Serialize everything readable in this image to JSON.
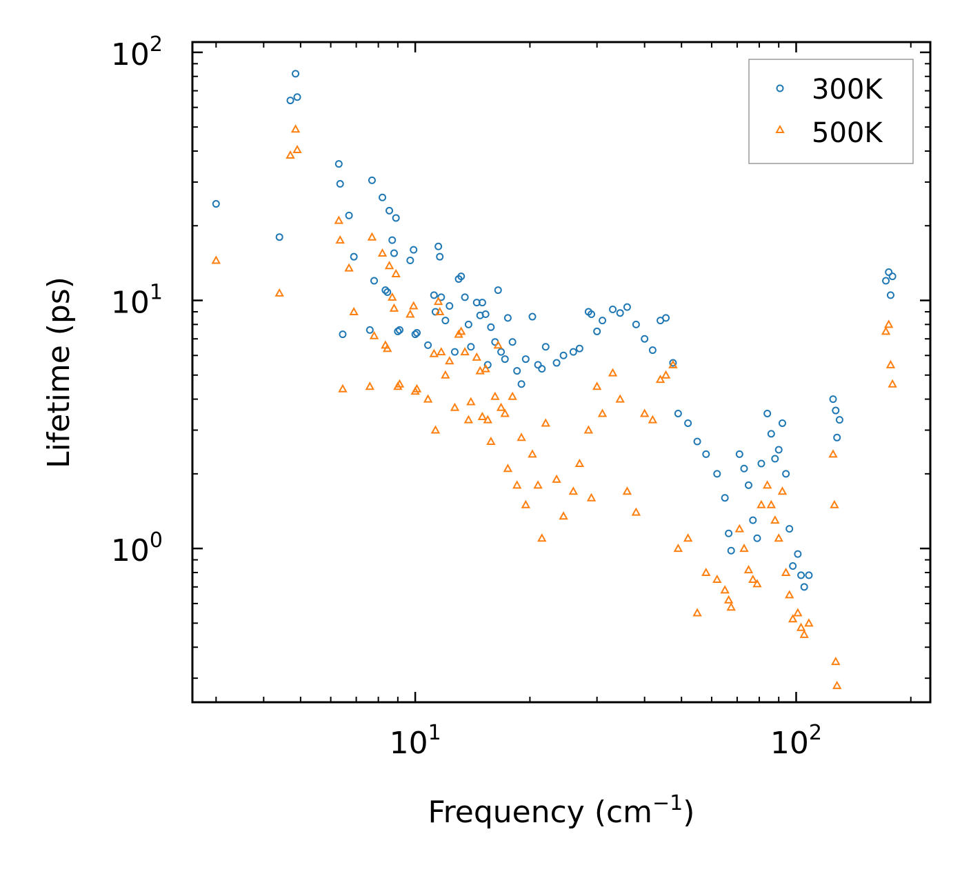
{
  "chart_data": {
    "type": "scatter",
    "title": "",
    "xlabel": "Frequency (cm",
    "xlabel_sup": "−1",
    "xlabel_close": ")",
    "ylabel": "Lifetime (ps)",
    "xscale": "log",
    "yscale": "log",
    "xlim": [
      2.6,
      225
    ],
    "ylim": [
      0.24,
      110
    ],
    "legend_position": "top-right",
    "x_ticks": [
      {
        "value": 10,
        "base": "10",
        "exp": "1"
      },
      {
        "value": 100,
        "base": "10",
        "exp": "2"
      }
    ],
    "y_ticks": [
      {
        "value": 1,
        "base": "10",
        "exp": "0"
      },
      {
        "value": 10,
        "base": "10",
        "exp": "1"
      },
      {
        "value": 100,
        "base": "10",
        "exp": "2"
      }
    ],
    "series": [
      {
        "name": "300K",
        "marker": "circle",
        "color": "#1f77b4",
        "points": [
          [
            3.0,
            24.5
          ],
          [
            4.4,
            18.0
          ],
          [
            4.7,
            64
          ],
          [
            4.9,
            66
          ],
          [
            4.85,
            82
          ],
          [
            6.3,
            35.5
          ],
          [
            6.35,
            29.5
          ],
          [
            6.45,
            7.3
          ],
          [
            6.7,
            22.0
          ],
          [
            6.9,
            15.0
          ],
          [
            7.6,
            7.6
          ],
          [
            7.7,
            30.5
          ],
          [
            7.8,
            12.0
          ],
          [
            8.2,
            26.0
          ],
          [
            8.35,
            11.0
          ],
          [
            8.45,
            10.8
          ],
          [
            8.55,
            23.0
          ],
          [
            8.7,
            17.5
          ],
          [
            8.8,
            15.5
          ],
          [
            8.9,
            21.5
          ],
          [
            9.0,
            7.5
          ],
          [
            9.1,
            7.6
          ],
          [
            9.7,
            14.5
          ],
          [
            9.9,
            16.0
          ],
          [
            10.0,
            7.3
          ],
          [
            10.1,
            7.4
          ],
          [
            10.8,
            6.6
          ],
          [
            11.2,
            10.5
          ],
          [
            11.3,
            9.0
          ],
          [
            11.5,
            16.5
          ],
          [
            11.6,
            15.0
          ],
          [
            11.7,
            10.3
          ],
          [
            12.0,
            8.3
          ],
          [
            12.3,
            9.5
          ],
          [
            12.7,
            6.2
          ],
          [
            13.0,
            12.2
          ],
          [
            13.2,
            12.5
          ],
          [
            13.5,
            10.3
          ],
          [
            13.8,
            8.0
          ],
          [
            14.0,
            6.5
          ],
          [
            14.5,
            9.8
          ],
          [
            14.8,
            8.7
          ],
          [
            15.0,
            9.8
          ],
          [
            15.3,
            8.8
          ],
          [
            15.5,
            5.5
          ],
          [
            15.8,
            7.8
          ],
          [
            16.2,
            6.8
          ],
          [
            16.5,
            11.0
          ],
          [
            16.8,
            6.2
          ],
          [
            17.2,
            5.8
          ],
          [
            17.5,
            8.5
          ],
          [
            18.0,
            6.8
          ],
          [
            18.5,
            5.2
          ],
          [
            19.0,
            4.6
          ],
          [
            19.5,
            5.8
          ],
          [
            20.3,
            8.6
          ],
          [
            21.0,
            5.5
          ],
          [
            21.5,
            5.3
          ],
          [
            22.0,
            6.5
          ],
          [
            23.5,
            5.6
          ],
          [
            24.5,
            6.0
          ],
          [
            26.0,
            6.2
          ],
          [
            27.0,
            6.4
          ],
          [
            28.5,
            9.0
          ],
          [
            29.0,
            8.8
          ],
          [
            30.0,
            7.5
          ],
          [
            31.0,
            8.3
          ],
          [
            33.0,
            9.2
          ],
          [
            34.5,
            8.9
          ],
          [
            36.0,
            9.4
          ],
          [
            38.0,
            8.0
          ],
          [
            40.0,
            7.0
          ],
          [
            42.0,
            6.3
          ],
          [
            44.0,
            8.3
          ],
          [
            45.5,
            8.5
          ],
          [
            47.5,
            5.6
          ],
          [
            49.0,
            3.5
          ],
          [
            52.0,
            3.2
          ],
          [
            55.0,
            2.7
          ],
          [
            58.0,
            2.4
          ],
          [
            62.0,
            2.0
          ],
          [
            65.0,
            1.6
          ],
          [
            66.5,
            1.15
          ],
          [
            67.5,
            0.98
          ],
          [
            71.0,
            2.4
          ],
          [
            73.0,
            2.1
          ],
          [
            75.0,
            1.8
          ],
          [
            77.0,
            1.3
          ],
          [
            79.0,
            1.1
          ],
          [
            81.0,
            2.2
          ],
          [
            84.0,
            3.5
          ],
          [
            86.0,
            2.9
          ],
          [
            88.0,
            2.3
          ],
          [
            90.0,
            2.5
          ],
          [
            92.0,
            3.2
          ],
          [
            94.0,
            2.0
          ],
          [
            96.0,
            1.2
          ],
          [
            98.0,
            0.85
          ],
          [
            101.0,
            0.95
          ],
          [
            103.0,
            0.78
          ],
          [
            105.0,
            0.7
          ],
          [
            108.0,
            0.78
          ],
          [
            125.0,
            4.0
          ],
          [
            127.0,
            3.6
          ],
          [
            128.0,
            2.8
          ],
          [
            130.0,
            3.3
          ],
          [
            172.0,
            12.0
          ],
          [
            175.0,
            13.0
          ],
          [
            177.0,
            10.5
          ],
          [
            179.0,
            12.5
          ]
        ]
      },
      {
        "name": "500K",
        "marker": "triangle",
        "color": "#ff7f0e",
        "points": [
          [
            3.0,
            14.5
          ],
          [
            4.4,
            10.7
          ],
          [
            4.7,
            38.5
          ],
          [
            4.9,
            40.5
          ],
          [
            4.85,
            49
          ],
          [
            6.3,
            21.0
          ],
          [
            6.35,
            17.5
          ],
          [
            6.45,
            4.4
          ],
          [
            6.7,
            13.5
          ],
          [
            6.9,
            9.0
          ],
          [
            7.6,
            4.5
          ],
          [
            7.7,
            18.0
          ],
          [
            7.8,
            7.2
          ],
          [
            8.2,
            15.5
          ],
          [
            8.35,
            6.6
          ],
          [
            8.45,
            6.4
          ],
          [
            8.55,
            13.8
          ],
          [
            8.7,
            10.3
          ],
          [
            8.8,
            9.3
          ],
          [
            8.9,
            12.8
          ],
          [
            9.0,
            4.5
          ],
          [
            9.1,
            4.6
          ],
          [
            9.7,
            8.8
          ],
          [
            9.9,
            9.5
          ],
          [
            10.0,
            4.3
          ],
          [
            10.1,
            4.4
          ],
          [
            10.8,
            4.0
          ],
          [
            11.2,
            6.1
          ],
          [
            11.3,
            3.0
          ],
          [
            11.5,
            9.9
          ],
          [
            11.6,
            9.0
          ],
          [
            11.7,
            6.2
          ],
          [
            12.0,
            5.0
          ],
          [
            12.3,
            5.7
          ],
          [
            12.7,
            3.7
          ],
          [
            13.0,
            7.3
          ],
          [
            13.2,
            7.5
          ],
          [
            13.5,
            6.2
          ],
          [
            13.8,
            3.3
          ],
          [
            14.0,
            3.9
          ],
          [
            14.5,
            5.9
          ],
          [
            14.8,
            5.2
          ],
          [
            15.0,
            3.4
          ],
          [
            15.3,
            5.3
          ],
          [
            15.5,
            3.3
          ],
          [
            15.8,
            2.7
          ],
          [
            16.2,
            4.1
          ],
          [
            16.5,
            6.6
          ],
          [
            16.8,
            3.7
          ],
          [
            17.2,
            3.5
          ],
          [
            17.5,
            2.1
          ],
          [
            18.0,
            4.1
          ],
          [
            18.5,
            1.8
          ],
          [
            19.0,
            2.8
          ],
          [
            19.5,
            1.5
          ],
          [
            20.3,
            2.4
          ],
          [
            21.0,
            1.8
          ],
          [
            21.5,
            1.1
          ],
          [
            22.0,
            3.2
          ],
          [
            23.5,
            1.9
          ],
          [
            24.5,
            1.35
          ],
          [
            26.0,
            1.7
          ],
          [
            27.0,
            2.2
          ],
          [
            28.5,
            3.0
          ],
          [
            29.0,
            1.6
          ],
          [
            30.0,
            4.5
          ],
          [
            31.0,
            3.5
          ],
          [
            33.0,
            5.1
          ],
          [
            34.5,
            4.0
          ],
          [
            36.0,
            1.7
          ],
          [
            38.0,
            1.4
          ],
          [
            40.0,
            3.5
          ],
          [
            42.0,
            3.3
          ],
          [
            44.0,
            4.8
          ],
          [
            45.5,
            5.0
          ],
          [
            47.5,
            5.5
          ],
          [
            49.0,
            1.0
          ],
          [
            52.0,
            1.1
          ],
          [
            55.0,
            0.55
          ],
          [
            58.0,
            0.8
          ],
          [
            62.0,
            0.75
          ],
          [
            65.0,
            0.68
          ],
          [
            66.5,
            0.62
          ],
          [
            67.5,
            0.58
          ],
          [
            71.0,
            1.2
          ],
          [
            73.0,
            1.0
          ],
          [
            75.0,
            0.82
          ],
          [
            77.0,
            0.75
          ],
          [
            79.0,
            0.72
          ],
          [
            81.0,
            1.5
          ],
          [
            84.0,
            1.8
          ],
          [
            86.0,
            1.5
          ],
          [
            88.0,
            1.3
          ],
          [
            90.0,
            1.1
          ],
          [
            92.0,
            1.7
          ],
          [
            94.0,
            0.8
          ],
          [
            96.0,
            0.65
          ],
          [
            98.0,
            0.52
          ],
          [
            101.0,
            0.55
          ],
          [
            103.0,
            0.48
          ],
          [
            105.0,
            0.45
          ],
          [
            108.0,
            0.5
          ],
          [
            125.0,
            2.4
          ],
          [
            126.0,
            1.5
          ],
          [
            127.0,
            0.35
          ],
          [
            128.0,
            0.28
          ],
          [
            172.0,
            7.5
          ],
          [
            175.0,
            8.0
          ],
          [
            177.0,
            5.5
          ],
          [
            179.0,
            4.6
          ]
        ]
      }
    ]
  }
}
